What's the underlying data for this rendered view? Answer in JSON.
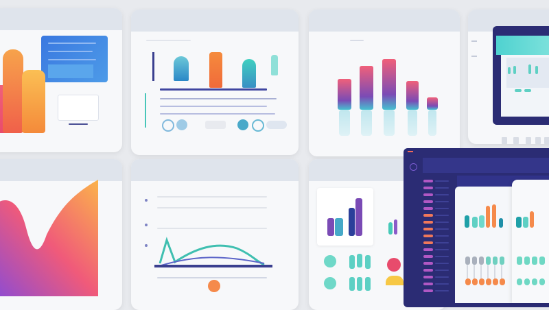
{
  "colors": {
    "background": "#e8eaee",
    "panel": "#f7f8fa",
    "panel_header": "#dfe4ec",
    "navy": "#2b2c74",
    "blue": "#3d7de0",
    "teal": "#46c9c0",
    "orange": "#f58a4b",
    "purple": "#7a4bb5",
    "pink": "#e85a7a"
  },
  "icons": [
    "circle-icon",
    "chart-icon",
    "menu-icon"
  ]
}
